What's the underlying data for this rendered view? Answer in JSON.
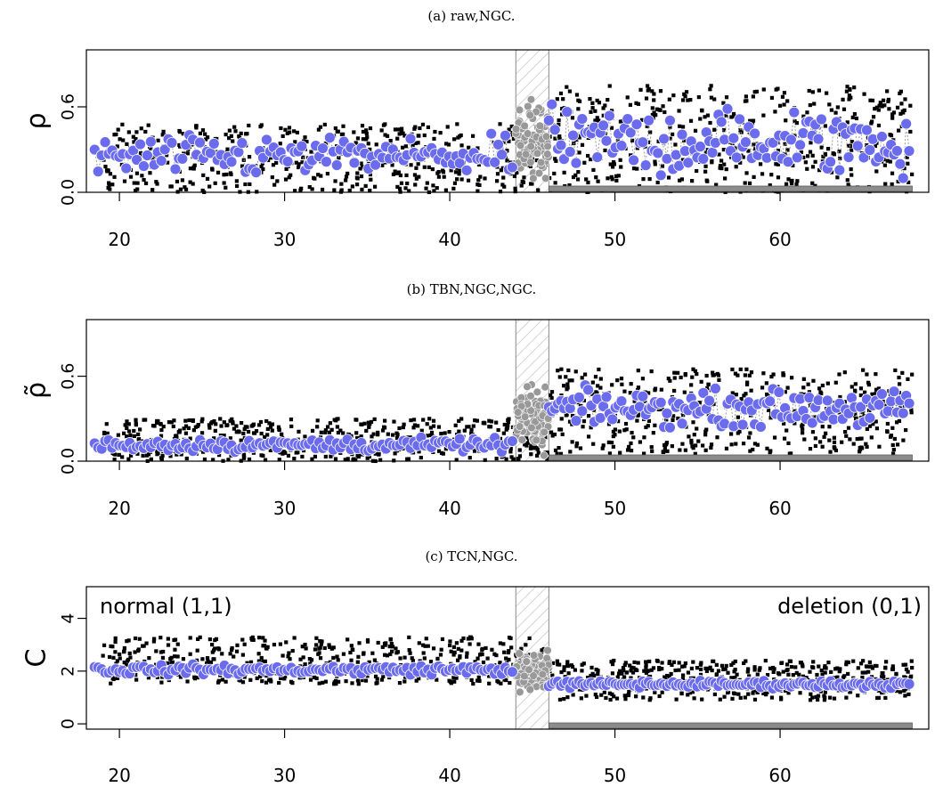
{
  "chart_data": [
    {
      "type": "scatter",
      "caption": "(a) raw,NGC.",
      "ylabel": "ρ",
      "xticks": [
        "20",
        "30",
        "40",
        "50",
        "60"
      ],
      "yticks": [
        "0.0",
        "0.6"
      ],
      "xlim": [
        18,
        69
      ],
      "ylim": [
        0,
        1
      ],
      "grid": false,
      "gap_region": [
        44,
        46
      ],
      "segment_bar": [
        46,
        68
      ],
      "annotations": [],
      "series": [
        {
          "role": "raw-points",
          "color": "#000000",
          "left_x": [
            19,
            46
          ],
          "left_y_range": [
            0.0,
            0.48
          ],
          "right_x": [
            46,
            68
          ],
          "right_y_range": [
            0.0,
            0.75
          ]
        },
        {
          "role": "gap-points",
          "color": "#999999",
          "x": [
            44,
            46
          ],
          "y_range": [
            0.0,
            0.7
          ]
        },
        {
          "role": "smoothed-points",
          "color": "#6b6bee",
          "left_x": [
            18.5,
            44
          ],
          "left_y_range": [
            0.05,
            0.45
          ],
          "right_x": [
            46,
            68
          ],
          "right_y_range": [
            0.0,
            0.7
          ]
        }
      ]
    },
    {
      "type": "scatter",
      "caption": "(b) TBN,NGC,NGC.",
      "ylabel": "ρ̃",
      "xticks": [
        "20",
        "30",
        "40",
        "50",
        "60"
      ],
      "yticks": [
        "0.0",
        "0.6"
      ],
      "xlim": [
        18,
        69
      ],
      "ylim": [
        0,
        1
      ],
      "grid": false,
      "gap_region": [
        44,
        46
      ],
      "segment_bar": [
        46,
        68
      ],
      "annotations": [],
      "series": [
        {
          "role": "raw-points",
          "color": "#000000",
          "left_x": [
            19,
            46
          ],
          "left_y_range": [
            0.0,
            0.3
          ],
          "right_x": [
            46,
            68
          ],
          "right_y_range": [
            0.05,
            0.65
          ]
        },
        {
          "role": "gap-points",
          "color": "#999999",
          "x": [
            44,
            46
          ],
          "y_range": [
            0.0,
            0.6
          ]
        },
        {
          "role": "smoothed-points",
          "color": "#6b6bee",
          "left_x": [
            18.5,
            44
          ],
          "left_y_range": [
            0.05,
            0.18
          ],
          "right_x": [
            46,
            68
          ],
          "right_y_range": [
            0.2,
            0.55
          ]
        }
      ]
    },
    {
      "type": "scatter",
      "caption": "(c) TCN,NGC.",
      "ylabel": "C",
      "xticks": [
        "20",
        "30",
        "40",
        "50",
        "60"
      ],
      "yticks": [
        "0",
        "2",
        "4"
      ],
      "xlim": [
        18,
        69
      ],
      "ylim": [
        -0.2,
        5.2
      ],
      "grid": false,
      "gap_region": [
        44,
        46
      ],
      "segment_bar": [
        46,
        68
      ],
      "annotations": [
        {
          "text": "normal (1,1)",
          "position": "top-left"
        },
        {
          "text": "deletion (0,1)",
          "position": "top-right"
        }
      ],
      "series": [
        {
          "role": "raw-points",
          "color": "#000000",
          "left_x": [
            19,
            46
          ],
          "left_y_range": [
            1.5,
            3.3
          ],
          "right_x": [
            46,
            68
          ],
          "right_y_range": [
            0.9,
            2.4
          ]
        },
        {
          "role": "gap-points",
          "color": "#999999",
          "x": [
            44,
            46
          ],
          "y_range": [
            1.0,
            3.0
          ]
        },
        {
          "role": "smoothed-points",
          "color": "#6b6bee",
          "left_x": [
            18.5,
            44
          ],
          "left_y_range": [
            1.8,
            2.3
          ],
          "right_x": [
            46,
            68
          ],
          "right_y_range": [
            1.3,
            1.7
          ]
        }
      ]
    }
  ]
}
